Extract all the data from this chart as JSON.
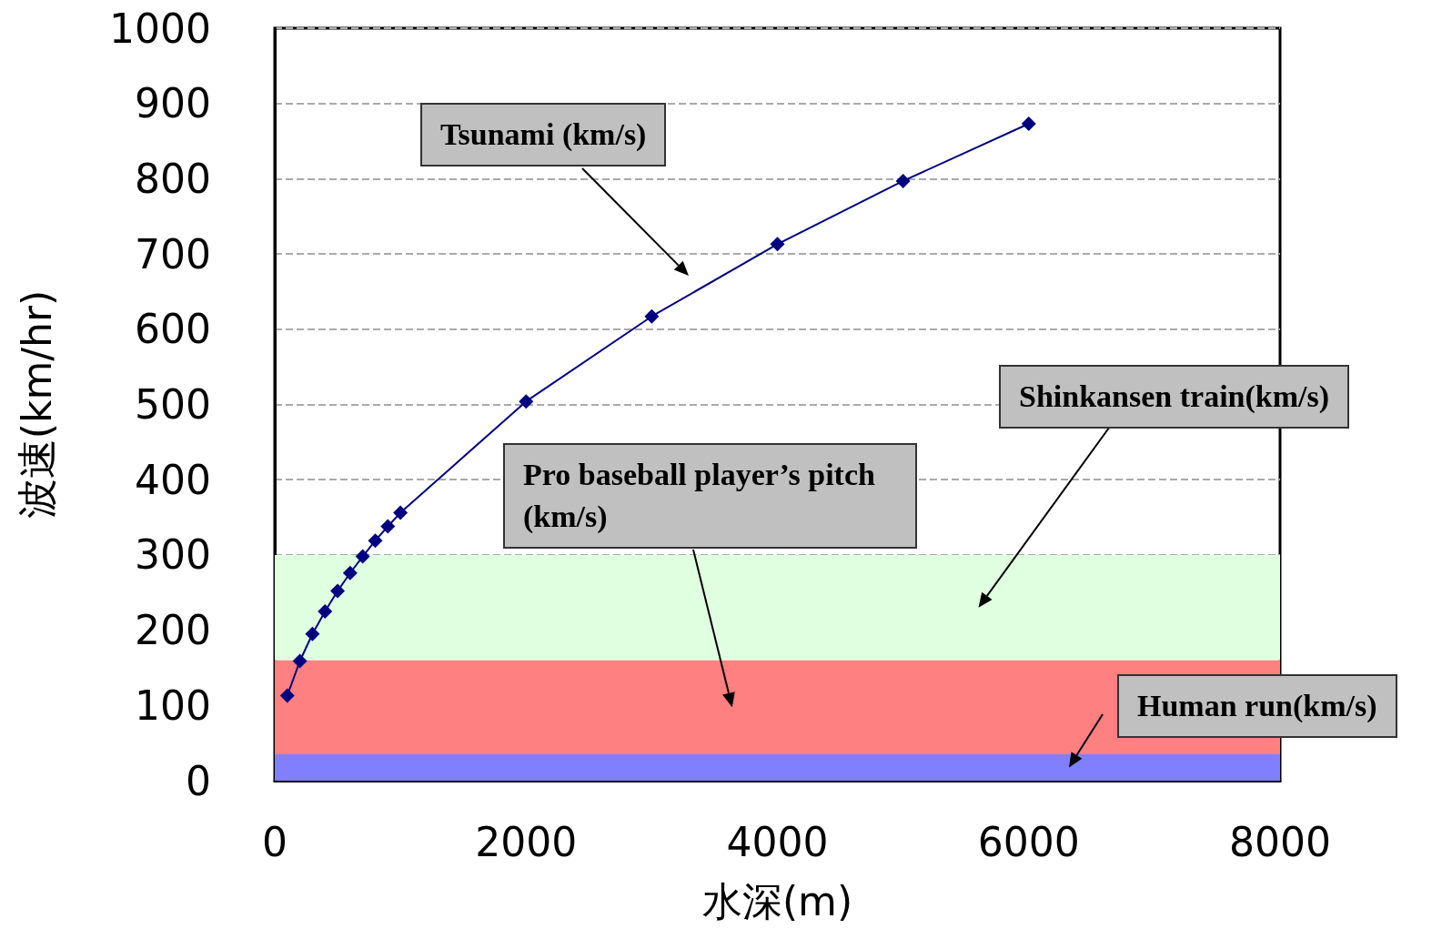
{
  "chart_data": {
    "type": "line",
    "xlabel": "水深(m)",
    "ylabel": "波速(km/hr)",
    "x": [
      100,
      200,
      300,
      400,
      500,
      600,
      700,
      800,
      900,
      1000,
      2000,
      3000,
      4000,
      5000,
      6000
    ],
    "annotations": [
      "Tsunami (km/s)"
    ],
    "series": [
      {
        "color": "#000080",
        "values": [
          113,
          159,
          195,
          225,
          252,
          276,
          298,
          319,
          338,
          356,
          504,
          617,
          713,
          797,
          873
        ]
      }
    ],
    "xlim": [
      0,
      8000
    ],
    "xticks": [
      0,
      2000,
      4000,
      6000,
      8000
    ],
    "ylim": [
      0,
      1000
    ],
    "yticks": [
      0,
      100,
      200,
      300,
      400,
      500,
      600,
      700,
      800,
      900,
      1000
    ],
    "bands": [
      {
        "axis": "y",
        "from": 160,
        "to": 300,
        "label": "Shinkansen train(km/s)",
        "color": "#e0ffe0"
      },
      {
        "axis": "y",
        "from": 35,
        "to": 160,
        "label": "Pro baseball player’s pitch (km/s)",
        "color": "#ff8080"
      },
      {
        "axis": "y",
        "from": 0,
        "to": 35,
        "label": "Human run(km/s)",
        "color": "#8080ff"
      }
    ],
    "grid": "y",
    "marker": "diamond",
    "line_style": "solid"
  }
}
